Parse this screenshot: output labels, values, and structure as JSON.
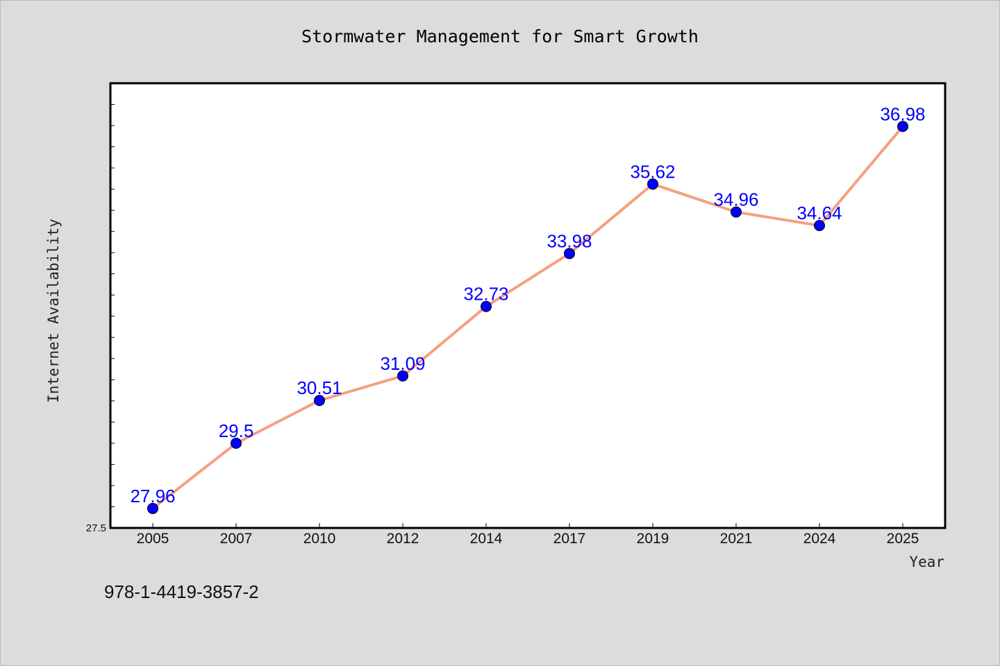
{
  "chart_data": {
    "type": "line",
    "title": "Stormwater Management for Smart Growth",
    "xlabel": "Year",
    "ylabel": "Internet Availability",
    "categories": [
      "2005",
      "2007",
      "2010",
      "2012",
      "2014",
      "2017",
      "2019",
      "2021",
      "2024",
      "2025"
    ],
    "series": [
      {
        "values": [
          27.96,
          29.5,
          30.51,
          31.09,
          32.73,
          33.98,
          35.62,
          34.96,
          34.64,
          36.98
        ],
        "data_labels": [
          "27.96",
          "29.5",
          "30.51",
          "31.09",
          "32.73",
          "33.98",
          "35.62",
          "34.96",
          "34.64",
          "36.98"
        ]
      }
    ],
    "yticks_labeled": [
      "27.5"
    ],
    "ylim": [
      27.5,
      38.0
    ],
    "grid": false,
    "line_color": "#f4a080",
    "marker_color": "#0000ff",
    "label_color": "#0000ff",
    "plot_background": "#ffffff",
    "page_background": "#dcdcdc"
  },
  "footnote": "978-1-4419-3857-2"
}
